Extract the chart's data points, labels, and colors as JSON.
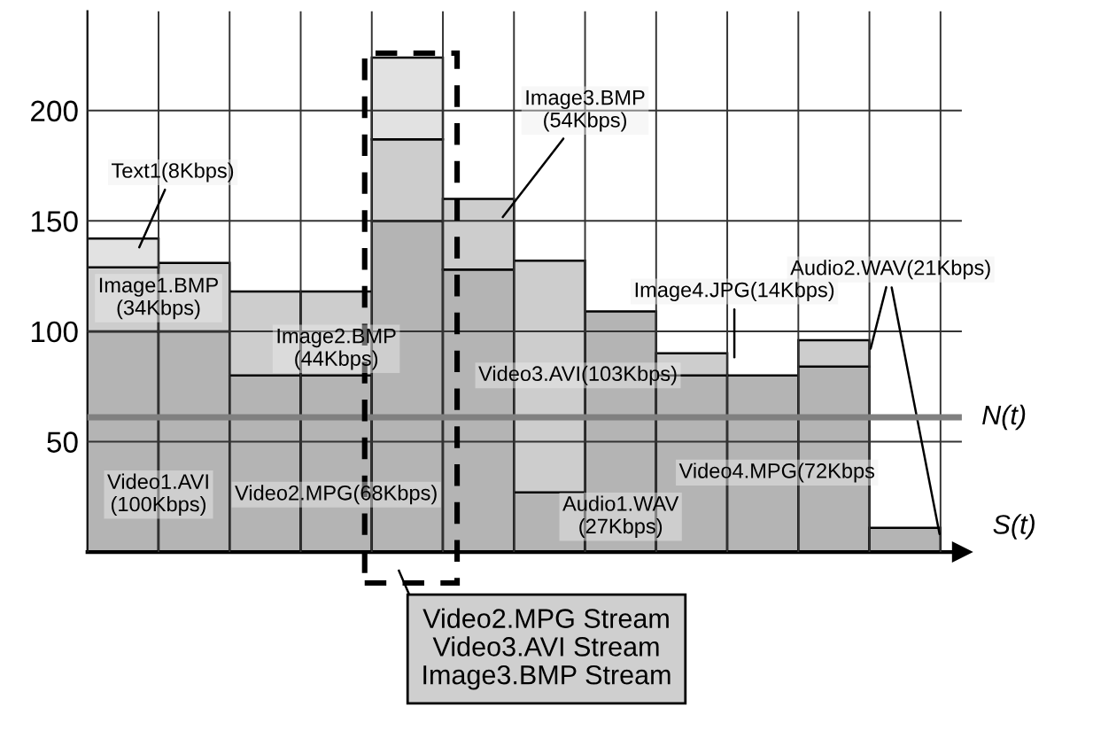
{
  "chart_data": {
    "type": "bar",
    "stacked": true,
    "categories": [
      null,
      null,
      null,
      null,
      null,
      null,
      null,
      null,
      null,
      null,
      null,
      null
    ],
    "series": [
      {
        "color": "#b4b4b4",
        "values": [
          100,
          100,
          80,
          80,
          150,
          128,
          27,
          109,
          80,
          80,
          84,
          11
        ]
      },
      {
        "color": "#cdcdcd",
        "values": [
          29,
          31,
          38,
          38,
          37,
          32,
          105,
          null,
          10,
          null,
          12,
          null
        ]
      },
      {
        "color": "#e2e2e2",
        "values": [
          13,
          null,
          null,
          null,
          37,
          null,
          null,
          null,
          null,
          null,
          null,
          null
        ]
      }
    ],
    "ylim": [
      0,
      245
    ],
    "yticks": [
      50,
      100,
      150,
      200
    ],
    "grid": true,
    "xlabel": "S(t)",
    "ref_lines": [
      {
        "axis": "y",
        "value": 61,
        "label": "N(t)",
        "color": "#808080"
      }
    ],
    "annotations": [
      "Text1(8Kbps)",
      "Image1.BMP\n(34Kbps)",
      "Image2.BMP\n(44Kbps)",
      "Video1.AVI\n(100Kbps)",
      "Video2.MPG(68Kbps)",
      "Image3.BMP\n(54Kbps)",
      "Video3.AVI(103Kbps)",
      "Audio1.WAV\n(27Kbps)",
      "Image4.JPG(14Kbps)",
      "Audio2.WAV(21Kbps)",
      "Video4.MPG(72Kbps",
      "Video2.MPG Stream\nVideo3.AVI Stream\nImage3.BMP Stream"
    ]
  }
}
